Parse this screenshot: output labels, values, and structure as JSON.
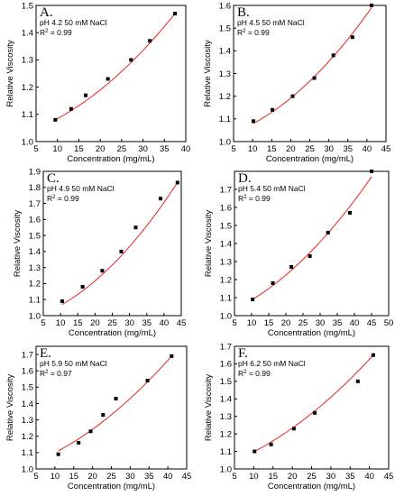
{
  "figure": {
    "panels_count": 6
  },
  "chart_data": [
    {
      "type": "scatter",
      "panel_label": "A.",
      "annotation": "pH 4.2 50 mM NaCl",
      "r2_prefix": "R",
      "r2_sup": "2",
      "r2_value": " = 0.99",
      "xlabel": "Concentration (mg/mL)",
      "ylabel": "Relative Viscosity",
      "xlim": [
        5,
        40
      ],
      "ylim": [
        1.0,
        1.5
      ],
      "xticks": [
        5,
        10,
        15,
        20,
        25,
        30,
        35,
        40
      ],
      "yticks": [
        1.0,
        1.1,
        1.2,
        1.3,
        1.4,
        1.5
      ],
      "x": [
        9.5,
        13.2,
        16.6,
        21.8,
        27.2,
        31.6,
        37.5
      ],
      "y": [
        1.08,
        1.12,
        1.17,
        1.23,
        1.3,
        1.37,
        1.47
      ],
      "fit": {
        "x": [
          9.5,
          37.5
        ],
        "y_start": 1.08,
        "y_end": 1.47,
        "curvature": 0.4
      },
      "marker_color": "#000000",
      "fit_color": "#e8251f",
      "grid": false
    },
    {
      "type": "scatter",
      "panel_label": "B.",
      "annotation": "pH 4.5 50 mM NaCl",
      "r2_prefix": "R",
      "r2_sup": "2",
      "r2_value": " = 0.99",
      "xlabel": "Concentration (mg/mL)",
      "ylabel": "Relative Viscosity",
      "xlim": [
        5,
        45
      ],
      "ylim": [
        1.0,
        1.6
      ],
      "xticks": [
        5,
        10,
        15,
        20,
        25,
        30,
        35,
        40,
        45
      ],
      "yticks": [
        1.0,
        1.1,
        1.2,
        1.3,
        1.4,
        1.5,
        1.6
      ],
      "x": [
        10.2,
        15.2,
        20.5,
        26.2,
        31.2,
        36.2,
        41.2
      ],
      "y": [
        1.09,
        1.14,
        1.2,
        1.28,
        1.38,
        1.46,
        1.6
      ],
      "fit": {
        "x": [
          10.2,
          41.2
        ],
        "y_start": 1.08,
        "y_end": 1.59,
        "curvature": 0.45
      },
      "marker_color": "#000000",
      "fit_color": "#e8251f",
      "grid": false
    },
    {
      "type": "scatter",
      "panel_label": "C.",
      "annotation": "pH 4.9 50 mM NaCl",
      "r2_prefix": "R",
      "r2_sup": "2",
      "r2_value": " = 0.99",
      "xlabel": "Concentration (mg/mL)",
      "ylabel": "Relative Viscosity",
      "xlim": [
        5,
        45
      ],
      "ylim": [
        1.0,
        1.9
      ],
      "xticks": [
        5,
        10,
        15,
        20,
        25,
        30,
        35,
        40,
        45
      ],
      "yticks": [
        1.0,
        1.1,
        1.2,
        1.3,
        1.4,
        1.5,
        1.6,
        1.7,
        1.8,
        1.9
      ],
      "x": [
        10.5,
        16.4,
        22.1,
        27.6,
        31.8,
        39.0,
        43.9
      ],
      "y": [
        1.09,
        1.18,
        1.28,
        1.4,
        1.55,
        1.73,
        1.83
      ],
      "fit": {
        "x": [
          10.5,
          43.9
        ],
        "y_start": 1.07,
        "y_end": 1.83,
        "curvature": 0.45
      },
      "marker_color": "#000000",
      "fit_color": "#e8251f",
      "grid": false
    },
    {
      "type": "scatter",
      "panel_label": "D.",
      "annotation": "pH 5.4 50 mM NaCl",
      "r2_prefix": "R",
      "r2_sup": "2",
      "r2_value": " = 0.99",
      "xlabel": "Concentration (mg/mL)",
      "ylabel": "Relative Viscosity",
      "xlim": [
        5,
        50
      ],
      "ylim": [
        1.0,
        1.8
      ],
      "xticks": [
        5,
        10,
        15,
        20,
        25,
        30,
        35,
        40,
        45,
        50
      ],
      "yticks": [
        1.0,
        1.1,
        1.2,
        1.3,
        1.4,
        1.5,
        1.6,
        1.7
      ],
      "x": [
        10.3,
        16.2,
        21.6,
        27.0,
        32.3,
        38.7,
        45.0
      ],
      "y": [
        1.09,
        1.18,
        1.27,
        1.33,
        1.46,
        1.57,
        1.8
      ],
      "fit": {
        "x": [
          10.3,
          45.0
        ],
        "y_start": 1.09,
        "y_end": 1.77,
        "curvature": 0.4
      },
      "marker_color": "#000000",
      "fit_color": "#e8251f",
      "grid": false
    },
    {
      "type": "scatter",
      "panel_label": "E.",
      "annotation": "pH 5.9 50 mM NaCl",
      "r2_prefix": "R",
      "r2_sup": "2",
      "r2_value": " = 0.97",
      "xlabel": "Concentration (mg/mL)",
      "ylabel": "Relative Viscosity",
      "xlim": [
        5,
        45
      ],
      "ylim": [
        1.0,
        1.75
      ],
      "xticks": [
        5,
        10,
        15,
        20,
        25,
        30,
        35,
        40,
        45
      ],
      "yticks": [
        1.0,
        1.1,
        1.2,
        1.3,
        1.4,
        1.5,
        1.6,
        1.7
      ],
      "x": [
        10.9,
        16.3,
        19.5,
        22.8,
        26.2,
        34.6,
        41.0
      ],
      "y": [
        1.09,
        1.16,
        1.23,
        1.33,
        1.43,
        1.54,
        1.69
      ],
      "fit": {
        "x": [
          10.9,
          41.0
        ],
        "y_start": 1.11,
        "y_end": 1.69,
        "curvature": 0.35
      },
      "marker_color": "#000000",
      "fit_color": "#e8251f",
      "grid": false
    },
    {
      "type": "scatter",
      "panel_label": "F.",
      "annotation": "pH 6.2 50 mM NaCl",
      "r2_prefix": "R",
      "r2_sup": "2",
      "r2_value": " = 0.99",
      "xlabel": "Concentration (mg/mL)",
      "ylabel": "Relative Viscosity",
      "xlim": [
        5,
        45
      ],
      "ylim": [
        1.0,
        1.7
      ],
      "xticks": [
        5,
        10,
        15,
        20,
        25,
        30,
        35,
        40,
        45
      ],
      "yticks": [
        1.0,
        1.1,
        1.2,
        1.3,
        1.4,
        1.5,
        1.6,
        1.7
      ],
      "x": [
        10.2,
        14.5,
        20.4,
        25.8,
        37.0,
        41.0
      ],
      "y": [
        1.1,
        1.14,
        1.23,
        1.32,
        1.5,
        1.65
      ],
      "fit": {
        "x": [
          10.2,
          41.0
        ],
        "y_start": 1.1,
        "y_end": 1.65,
        "curvature": 0.35
      },
      "marker_color": "#000000",
      "fit_color": "#e8251f",
      "grid": false
    }
  ]
}
